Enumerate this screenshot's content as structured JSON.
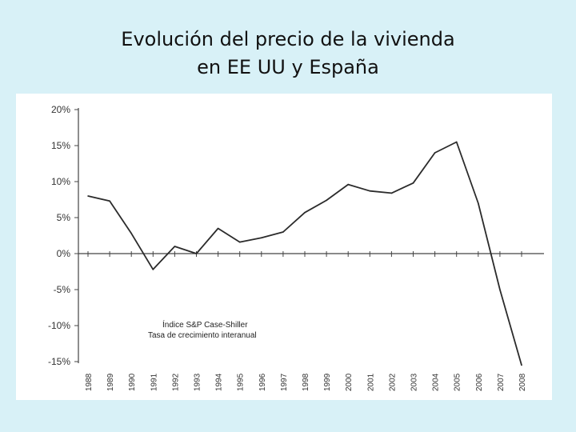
{
  "slide": {
    "title_line1": "Evolución del precio de la vivienda",
    "title_line2": "en EE UU y España"
  },
  "chart_data": {
    "type": "line",
    "title": "",
    "xlabel": "",
    "ylabel": "",
    "categories": [
      "1988",
      "1989",
      "1990",
      "1991",
      "1992",
      "1993",
      "1994",
      "1995",
      "1996",
      "1997",
      "1998",
      "1999",
      "2000",
      "2001",
      "2002",
      "2003",
      "2004",
      "2005",
      "2006",
      "2007",
      "2008"
    ],
    "ylim": [
      -15,
      20
    ],
    "yticks": [
      20,
      15,
      10,
      5,
      0,
      -5,
      -10,
      -15
    ],
    "ytick_labels": [
      "20%",
      "15%",
      "10%",
      "5%",
      "0%",
      "-5%",
      "-10%",
      "-15%"
    ],
    "series": [
      {
        "name": "Índice S&P Case-Shiller",
        "values": [
          8.0,
          7.3,
          2.8,
          -2.2,
          1.0,
          0.0,
          3.5,
          1.6,
          2.2,
          3.0,
          5.7,
          7.4,
          9.6,
          8.7,
          8.4,
          9.8,
          14.0,
          15.5,
          7.0,
          -5.0,
          -15.5
        ]
      }
    ],
    "annotations": [
      "Índice S&P Case-Shiller",
      "Tasa de crecimiento interanual"
    ],
    "colors": {
      "line": "#2b2b2b",
      "axis": "#444444"
    }
  }
}
